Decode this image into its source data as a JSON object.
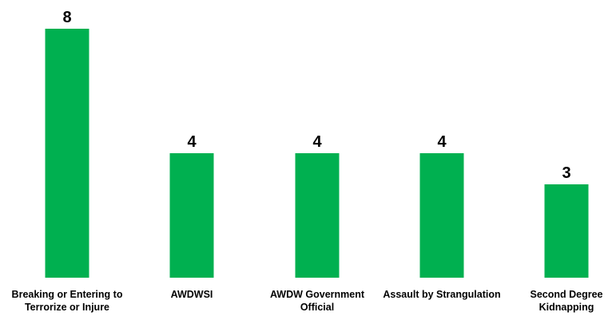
{
  "chart_data": {
    "type": "bar",
    "categories": [
      [
        "Breaking or Entering to",
        "Terrorize or Injure"
      ],
      [
        "AWDWSI"
      ],
      [
        "AWDW Government",
        "Official"
      ],
      [
        "Assault by Strangulation"
      ],
      [
        "Second Degree",
        "Kidnapping"
      ]
    ],
    "values": [
      8,
      4,
      4,
      4,
      3
    ],
    "data_labels": [
      "8",
      "4",
      "4",
      "4",
      "3"
    ],
    "title": "",
    "xlabel": "",
    "ylabel": "",
    "ylim": [
      0,
      8
    ],
    "grid": false,
    "legend": "none",
    "bar_color": "#00B050"
  }
}
